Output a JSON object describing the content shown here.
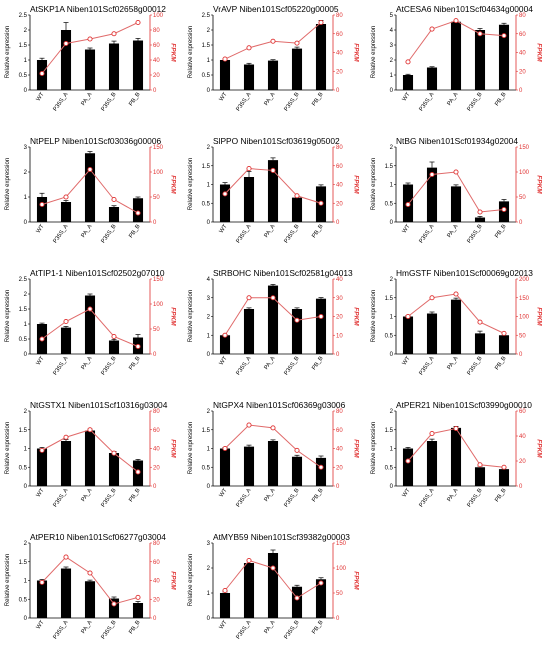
{
  "chart_data": [
    {
      "type": "bar",
      "title": "AtSKP1A Niben101Scf02658g00012",
      "categories": [
        "WT",
        "P35S_A",
        "PA_A",
        "P35S_B",
        "PB_B"
      ],
      "values": [
        1.0,
        2.0,
        1.35,
        1.55,
        1.65
      ],
      "errors": [
        0.06,
        0.25,
        0.05,
        0.08,
        0.07
      ],
      "line_values": [
        22,
        62,
        68,
        75,
        90
      ],
      "ylabel": "Relative expression",
      "y2label": "FPKM",
      "ylim": [
        0,
        2.5
      ],
      "yticks": [
        0,
        0.5,
        1,
        1.5,
        2,
        2.5
      ],
      "y2lim": [
        0,
        100
      ],
      "y2ticks": [
        0,
        20,
        40,
        60,
        80,
        100
      ]
    },
    {
      "type": "bar",
      "title": "VrAVP Niben101Scf05220g00005",
      "categories": [
        "WT",
        "P35S_A",
        "PA_A",
        "P35S_B",
        "PB_B"
      ],
      "values": [
        1.0,
        0.85,
        0.98,
        1.38,
        2.2
      ],
      "errors": [
        0.04,
        0.04,
        0.03,
        0.05,
        0.12
      ],
      "line_values": [
        33,
        45,
        52,
        50,
        72
      ],
      "ylabel": "Relative expression",
      "y2label": "FPKM",
      "ylim": [
        0,
        2.5
      ],
      "yticks": [
        0,
        0.5,
        1,
        1.5,
        2,
        2.5
      ],
      "y2lim": [
        0,
        80
      ],
      "y2ticks": [
        0,
        20,
        40,
        60,
        80
      ]
    },
    {
      "type": "bar",
      "title": "AtCESA6 Niben101Scf04634g00004",
      "categories": [
        "WT",
        "P35S_A",
        "PA_A",
        "P35S_B",
        "PB_B"
      ],
      "values": [
        1.0,
        1.5,
        4.55,
        4.0,
        4.35
      ],
      "errors": [
        0.05,
        0.05,
        0.1,
        0.1,
        0.1
      ],
      "line_values": [
        30,
        65,
        74,
        60,
        58
      ],
      "ylabel": "Relative expression",
      "y2label": "FPKM",
      "ylim": [
        0,
        5
      ],
      "yticks": [
        0,
        1,
        2,
        3,
        4,
        5
      ],
      "y2lim": [
        0,
        80
      ],
      "y2ticks": [
        0,
        20,
        40,
        60,
        80
      ]
    },
    {
      "type": "bar",
      "title": "NtPELP Niben101Scf03036g00006",
      "categories": [
        "WT",
        "P35S_A",
        "PA_A",
        "P35S_B",
        "PB_B"
      ],
      "values": [
        1.0,
        0.8,
        2.75,
        0.6,
        0.95
      ],
      "errors": [
        0.15,
        0.06,
        0.07,
        0.05,
        0.05
      ],
      "line_values": [
        35,
        50,
        105,
        45,
        18
      ],
      "ylabel": "Relative expression",
      "y2label": "FPKM",
      "ylim": [
        0,
        3
      ],
      "yticks": [
        0,
        1,
        2,
        3
      ],
      "y2lim": [
        0,
        150
      ],
      "y2ticks": [
        0,
        50,
        100,
        150
      ]
    },
    {
      "type": "bar",
      "title": "SlPPO Niben101Scf03619g05002",
      "categories": [
        "WT",
        "P35S_A",
        "PA_A",
        "P35S_B",
        "PB_B"
      ],
      "values": [
        1.0,
        1.2,
        1.65,
        0.65,
        0.95
      ],
      "errors": [
        0.05,
        0.15,
        0.06,
        0.05,
        0.04
      ],
      "line_values": [
        30,
        57,
        55,
        28,
        20
      ],
      "ylabel": "Relative expression",
      "y2label": "FPKM",
      "ylim": [
        0,
        2
      ],
      "yticks": [
        0,
        0.5,
        1,
        1.5,
        2
      ],
      "y2lim": [
        0,
        80
      ],
      "y2ticks": [
        0,
        20,
        40,
        60,
        80
      ]
    },
    {
      "type": "bar",
      "title": "NtBG Niben101Scf01934g02004",
      "categories": [
        "WT",
        "P35S_A",
        "PA_A",
        "P35S_B",
        "PB_B"
      ],
      "values": [
        1.0,
        1.45,
        0.95,
        0.12,
        0.55
      ],
      "errors": [
        0.04,
        0.15,
        0.04,
        0.03,
        0.05
      ],
      "line_values": [
        35,
        95,
        100,
        20,
        25
      ],
      "ylabel": "Relative expression",
      "y2label": "FPKM",
      "ylim": [
        0,
        2
      ],
      "yticks": [
        0,
        0.5,
        1,
        1.5,
        2
      ],
      "y2lim": [
        0,
        150
      ],
      "y2ticks": [
        0,
        50,
        100,
        150
      ]
    },
    {
      "type": "bar",
      "title": "AtTIP1-1 Niben101Scf02502g07010",
      "categories": [
        "WT",
        "P35S_A",
        "PA_A",
        "P35S_B",
        "PB_B"
      ],
      "values": [
        1.0,
        0.88,
        1.95,
        0.45,
        0.55
      ],
      "errors": [
        0.03,
        0.04,
        0.05,
        0.04,
        0.1
      ],
      "line_values": [
        30,
        65,
        90,
        35,
        15
      ],
      "ylabel": "Relative expression",
      "y2label": "FPKM",
      "ylim": [
        0,
        2.5
      ],
      "yticks": [
        0,
        0.5,
        1,
        1.5,
        2,
        2.5
      ],
      "y2lim": [
        0,
        150
      ],
      "y2ticks": [
        0,
        50,
        100,
        150
      ]
    },
    {
      "type": "bar",
      "title": "StRBOHC Niben101Scf02581g04013",
      "categories": [
        "WT",
        "P35S_A",
        "PA_A",
        "P35S_B",
        "PB_B"
      ],
      "values": [
        1.0,
        2.4,
        3.65,
        2.4,
        2.95
      ],
      "errors": [
        0.04,
        0.06,
        0.06,
        0.06,
        0.06
      ],
      "line_values": [
        10,
        30,
        30,
        18,
        20
      ],
      "ylabel": "Relative expression",
      "y2label": "FPKM",
      "ylim": [
        0,
        4
      ],
      "yticks": [
        0,
        1,
        2,
        3,
        4
      ],
      "y2lim": [
        0,
        40
      ],
      "y2ticks": [
        0,
        10,
        20,
        30,
        40
      ]
    },
    {
      "type": "bar",
      "title": "HmGSTF Niben101Scf00069g02013",
      "categories": [
        "WT",
        "P35S_A",
        "PA_A",
        "P35S_B",
        "PB_B"
      ],
      "values": [
        1.0,
        1.08,
        1.45,
        0.55,
        0.5
      ],
      "errors": [
        0.03,
        0.04,
        0.04,
        0.06,
        0.05
      ],
      "line_values": [
        100,
        150,
        160,
        85,
        55
      ],
      "ylabel": "Relative expression",
      "y2label": "FPKM",
      "ylim": [
        0,
        2
      ],
      "yticks": [
        0,
        0.5,
        1,
        1.5,
        2
      ],
      "y2lim": [
        0,
        200
      ],
      "y2ticks": [
        0,
        50,
        100,
        150,
        200
      ]
    },
    {
      "type": "bar",
      "title": "NtGSTX1 Niben101Scf10316g03004",
      "categories": [
        "WT",
        "P35S_A",
        "PA_A",
        "P35S_B",
        "PB_B"
      ],
      "values": [
        1.0,
        1.2,
        1.48,
        0.88,
        0.68
      ],
      "errors": [
        0.03,
        0.04,
        0.04,
        0.04,
        0.03
      ],
      "line_values": [
        38,
        52,
        60,
        35,
        15
      ],
      "ylabel": "Relative expression",
      "y2label": "FPKM",
      "ylim": [
        0,
        2
      ],
      "yticks": [
        0,
        0.5,
        1,
        1.5,
        2
      ],
      "y2lim": [
        0,
        80
      ],
      "y2ticks": [
        0,
        20,
        40,
        60,
        80
      ]
    },
    {
      "type": "bar",
      "title": "NtGPX4 Niben101Scf06369g03006",
      "categories": [
        "WT",
        "P35S_A",
        "PA_A",
        "P35S_B",
        "PB_B"
      ],
      "values": [
        1.0,
        1.05,
        1.2,
        0.78,
        0.75
      ],
      "errors": [
        0.03,
        0.04,
        0.03,
        0.04,
        0.05
      ],
      "line_values": [
        40,
        65,
        62,
        38,
        20
      ],
      "ylabel": "Relative expression",
      "y2label": "FPKM",
      "ylim": [
        0,
        2
      ],
      "yticks": [
        0,
        0.5,
        1,
        1.5,
        2
      ],
      "y2lim": [
        0,
        80
      ],
      "y2ticks": [
        0,
        20,
        40,
        60,
        80
      ]
    },
    {
      "type": "bar",
      "title": "AtPER21 Niben101Scf03990g00010",
      "categories": [
        "WT",
        "P35S_A",
        "PA_A",
        "P35S_B",
        "PB_B"
      ],
      "values": [
        1.0,
        1.2,
        1.55,
        0.5,
        0.45
      ],
      "errors": [
        0.03,
        0.05,
        0.04,
        0.03,
        0.03
      ],
      "line_values": [
        20,
        42,
        46,
        17,
        15
      ],
      "ylabel": "Relative expression",
      "y2label": "FPKM",
      "ylim": [
        0,
        2
      ],
      "yticks": [
        0,
        0.5,
        1,
        1.5,
        2
      ],
      "y2lim": [
        0,
        60
      ],
      "y2ticks": [
        0,
        20,
        40,
        60
      ]
    },
    {
      "type": "bar",
      "title": "AtPER10 Niben101Scf06277g03004",
      "categories": [
        "WT",
        "P35S_A",
        "PA_A",
        "P35S_B",
        "PB_B"
      ],
      "values": [
        1.0,
        1.32,
        0.98,
        0.52,
        0.4
      ],
      "errors": [
        0.03,
        0.04,
        0.03,
        0.04,
        0.04
      ],
      "line_values": [
        38,
        65,
        48,
        15,
        22
      ],
      "ylabel": "Relative expression",
      "y2label": "FPKM",
      "ylim": [
        0,
        2
      ],
      "yticks": [
        0,
        0.5,
        1,
        1.5,
        2
      ],
      "y2lim": [
        0,
        80
      ],
      "y2ticks": [
        0,
        20,
        40,
        60,
        80
      ]
    },
    {
      "type": "bar",
      "title": "AtMYB59 Niben101Scf39382g00003",
      "categories": [
        "WT",
        "P35S_A",
        "PA_A",
        "P35S_B",
        "PB_B"
      ],
      "values": [
        1.0,
        2.2,
        2.6,
        1.25,
        1.55
      ],
      "errors": [
        0.04,
        0.12,
        0.12,
        0.06,
        0.06
      ],
      "line_values": [
        55,
        115,
        100,
        40,
        70
      ],
      "ylabel": "Relative expression",
      "y2label": "FPKM",
      "ylim": [
        0,
        3
      ],
      "yticks": [
        0,
        1,
        2,
        3
      ],
      "y2lim": [
        0,
        150
      ],
      "y2ticks": [
        0,
        50,
        100,
        150
      ]
    }
  ],
  "colors": {
    "bar": "#000000",
    "line": "#e06a6a",
    "marker_edge": "#e03030",
    "right_axis": "#e03030"
  }
}
